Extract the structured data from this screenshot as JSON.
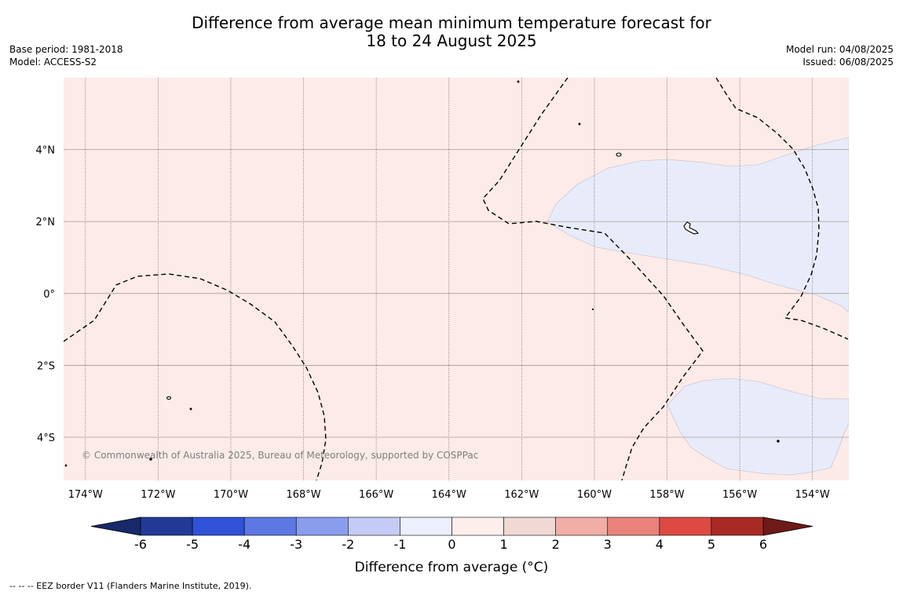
{
  "header": {
    "title_line1": "Difference from average mean minimum temperature forecast for",
    "title_line2": "18 to 24 August 2025",
    "base_period": "Base period: 1981-2018",
    "model": "Model: ACCESS-S2",
    "model_run": "Model run: 04/08/2025",
    "issued": "Issued: 06/08/2025"
  },
  "map": {
    "credit": "© Commonwealth of Australia 2025, Bureau of Meteorology, supported by COSPPac",
    "lon_range": [
      -174.6,
      -153.0
    ],
    "lat_range": [
      -5.2,
      6.0
    ],
    "lon_ticks": [
      "174°W",
      "172°W",
      "170°W",
      "168°W",
      "166°W",
      "164°W",
      "162°W",
      "160°W",
      "158°W",
      "156°W",
      "154°W"
    ],
    "lat_ticks": [
      "4°N",
      "2°N",
      "0°",
      "2°S",
      "4°S"
    ],
    "background_fill": "#fcebe8",
    "cool_fill": "#e8ecfa"
  },
  "colorbar": {
    "label": "Difference from average (°C)",
    "ticks": [
      "-6",
      "-5",
      "-4",
      "-3",
      "-2",
      "-1",
      "0",
      "1",
      "2",
      "3",
      "4",
      "5",
      "6"
    ],
    "colors": [
      "#223a96",
      "#2f52d6",
      "#5d78e2",
      "#8a9ded",
      "#c4cbf6",
      "#eceffc",
      "#fdeeeb",
      "#f0d8d5",
      "#f0aea6",
      "#e9837b",
      "#dc4a42",
      "#a82a24"
    ],
    "under_color": "#17296a",
    "over_color": "#6e1a17"
  },
  "footer": {
    "legend": "--  --  -- EEZ border V11 (Flanders Marine Institute, 2019)."
  }
}
